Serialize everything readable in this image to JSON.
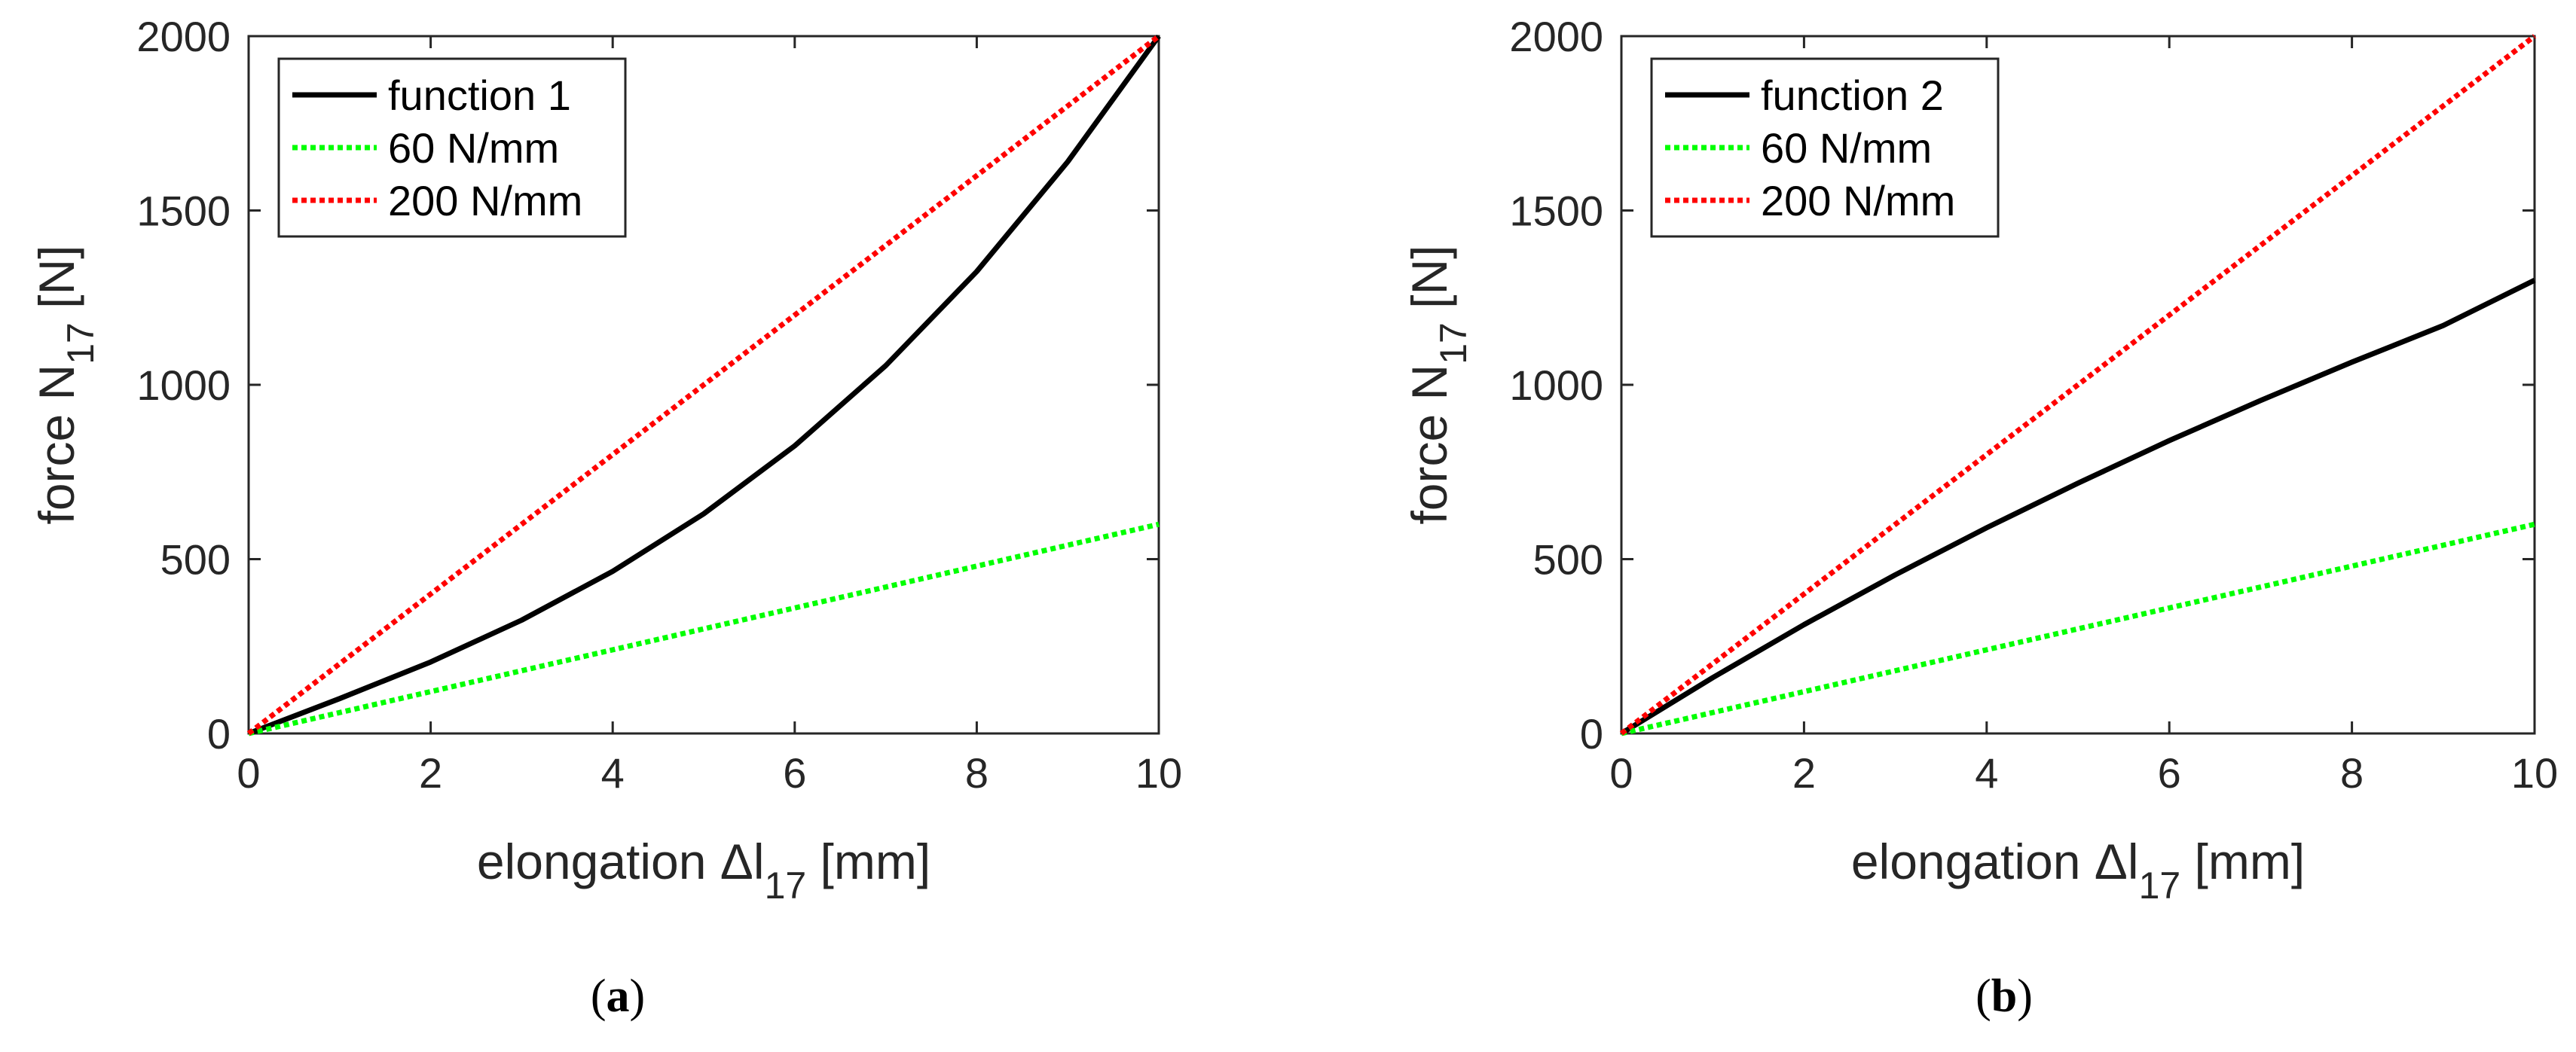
{
  "chart_data": [
    {
      "type": "line",
      "panel_label": "a",
      "xlabel": {
        "prefix": "elongation ",
        "delta": "Δ",
        "var": "l",
        "sub": "17",
        "suffix": " [mm]"
      },
      "ylabel": {
        "prefix": "force N",
        "sub": "17",
        "suffix": " [N]"
      },
      "xlim": [
        0,
        10
      ],
      "ylim": [
        0,
        2000
      ],
      "xticks": [
        0,
        2,
        4,
        6,
        8,
        10
      ],
      "yticks": [
        0,
        500,
        1000,
        1500,
        2000
      ],
      "legend_position": "top-left",
      "series": [
        {
          "name": "function 1",
          "color": "#000000",
          "style": "solid",
          "x": [
            0,
            1,
            2,
            3,
            4,
            5,
            6,
            7,
            8,
            9,
            10
          ],
          "y": [
            0,
            100,
            205,
            325,
            465,
            630,
            825,
            1055,
            1325,
            1640,
            2000
          ]
        },
        {
          "name": "60 N/mm",
          "color": "#00ff00",
          "style": "dotted",
          "x": [
            0,
            10
          ],
          "y": [
            0,
            600
          ]
        },
        {
          "name": "200 N/mm",
          "color": "#ff0000",
          "style": "dotted",
          "x": [
            0,
            10
          ],
          "y": [
            0,
            2000
          ]
        }
      ]
    },
    {
      "type": "line",
      "panel_label": "b",
      "xlabel": {
        "prefix": "elongation ",
        "delta": "Δ",
        "var": "l",
        "sub": "17",
        "suffix": " [mm]"
      },
      "ylabel": {
        "prefix": "force N",
        "sub": "17",
        "suffix": " [N]"
      },
      "xlim": [
        0,
        10
      ],
      "ylim": [
        0,
        2000
      ],
      "xticks": [
        0,
        2,
        4,
        6,
        8,
        10
      ],
      "yticks": [
        0,
        500,
        1000,
        1500,
        2000
      ],
      "legend_position": "top-left",
      "series": [
        {
          "name": "function 2",
          "color": "#000000",
          "style": "solid",
          "x": [
            0,
            1,
            2,
            3,
            4,
            5,
            6,
            7,
            8,
            9,
            10
          ],
          "y": [
            0,
            160,
            312,
            455,
            590,
            718,
            840,
            955,
            1065,
            1170,
            1300
          ]
        },
        {
          "name": "60 N/mm",
          "color": "#00ff00",
          "style": "dotted",
          "x": [
            0,
            10
          ],
          "y": [
            0,
            600
          ]
        },
        {
          "name": "200 N/mm",
          "color": "#ff0000",
          "style": "dotted",
          "x": [
            0,
            10
          ],
          "y": [
            0,
            2000
          ]
        }
      ]
    }
  ]
}
